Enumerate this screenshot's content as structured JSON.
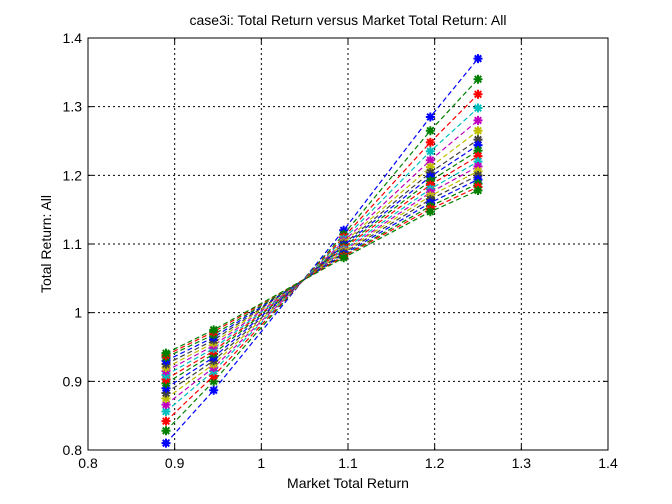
{
  "chart_data": {
    "type": "line",
    "title": "case3i: Total Return versus Market Total Return: All",
    "xlabel": "Market Total Return",
    "ylabel": "Total Return: All",
    "xlim": [
      0.8,
      1.4
    ],
    "ylim": [
      0.8,
      1.4
    ],
    "xticks": [
      "0.8",
      "0.9",
      "1",
      "1.1",
      "1.2",
      "1.3",
      "1.4"
    ],
    "yticks": [
      "0.8",
      "0.9",
      "1",
      "1.1",
      "1.2",
      "1.3",
      "1.4"
    ],
    "grid": true,
    "line_style": "dashed",
    "marker": "star",
    "x": [
      0.89,
      0.945,
      1.095,
      1.195,
      1.25
    ],
    "series": [
      {
        "color": "#0000ff",
        "values": [
          0.81,
          0.887,
          1.12,
          1.285,
          1.37
        ]
      },
      {
        "color": "#008000",
        "values": [
          0.828,
          0.9,
          1.114,
          1.265,
          1.34
        ]
      },
      {
        "color": "#ff0000",
        "values": [
          0.842,
          0.908,
          1.11,
          1.248,
          1.318
        ]
      },
      {
        "color": "#00bfbf",
        "values": [
          0.856,
          0.915,
          1.107,
          1.235,
          1.298
        ]
      },
      {
        "color": "#bf00bf",
        "values": [
          0.866,
          0.92,
          1.104,
          1.222,
          1.28
        ]
      },
      {
        "color": "#bfbf00",
        "values": [
          0.875,
          0.925,
          1.102,
          1.212,
          1.265
        ]
      },
      {
        "color": "#404040",
        "values": [
          0.883,
          0.93,
          1.1,
          1.204,
          1.252
        ]
      },
      {
        "color": "#0000ff",
        "values": [
          0.89,
          0.935,
          1.098,
          1.198,
          1.244
        ]
      },
      {
        "color": "#008000",
        "values": [
          0.897,
          0.94,
          1.096,
          1.192,
          1.236
        ]
      },
      {
        "color": "#ff0000",
        "values": [
          0.903,
          0.944,
          1.094,
          1.186,
          1.228
        ]
      },
      {
        "color": "#00bfbf",
        "values": [
          0.909,
          0.948,
          1.092,
          1.18,
          1.22
        ]
      },
      {
        "color": "#bf00bf",
        "values": [
          0.915,
          0.952,
          1.09,
          1.175,
          1.213
        ]
      },
      {
        "color": "#bfbf00",
        "values": [
          0.92,
          0.956,
          1.089,
          1.17,
          1.206
        ]
      },
      {
        "color": "#404040",
        "values": [
          0.925,
          0.96,
          1.087,
          1.165,
          1.2
        ]
      },
      {
        "color": "#0000ff",
        "values": [
          0.93,
          0.964,
          1.085,
          1.16,
          1.194
        ]
      },
      {
        "color": "#008000",
        "values": [
          0.935,
          0.968,
          1.083,
          1.155,
          1.188
        ]
      },
      {
        "color": "#ff0000",
        "values": [
          0.938,
          0.972,
          1.082,
          1.151,
          1.183
        ]
      },
      {
        "color": "#008000",
        "values": [
          0.941,
          0.975,
          1.08,
          1.147,
          1.178
        ]
      }
    ]
  }
}
